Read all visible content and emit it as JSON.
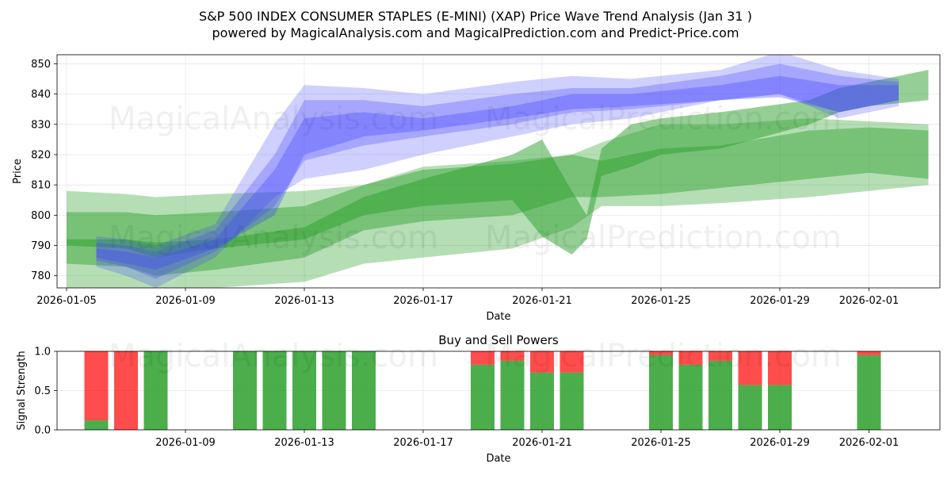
{
  "title_line1": "S&P 500 INDEX CONSUMER STAPLES (E-MINI) (XAP) Price Wave Trend Analysis (Jan 31 )",
  "title_line2": "powered by MagicalAnalysis.com and MagicalPrediction.com and Predict-Price.com",
  "watermarks": [
    "MagicalAnalysis.com",
    "MagicalPrediction.com"
  ],
  "colors": {
    "green": "#2ca02c",
    "blue": "#4444ff",
    "buy": "#2ca02c",
    "sell": "#ff0000"
  },
  "chart_data": [
    {
      "type": "area",
      "title": "",
      "xlabel": "Date",
      "ylabel": "Price",
      "xlim": [
        "2026-01-05",
        "2026-02-03"
      ],
      "ylim": [
        776,
        853
      ],
      "x_tick_labels": [
        "2026-01-05",
        "2026-01-09",
        "2026-01-13",
        "2026-01-17",
        "2026-01-21",
        "2026-01-25",
        "2026-01-29",
        "2026-02-01"
      ],
      "y_tick_labels": [
        "780",
        "790",
        "800",
        "810",
        "820",
        "830",
        "840",
        "850"
      ],
      "grid": true,
      "x_days": [
        0,
        1,
        2,
        3,
        4,
        5,
        6,
        7,
        8,
        9,
        10,
        11,
        12,
        13,
        14,
        15,
        16,
        17,
        18,
        19,
        20,
        21,
        22,
        23,
        24,
        25,
        26,
        27,
        28,
        29,
        30,
        31,
        32,
        33,
        34,
        35,
        36,
        37,
        38,
        39
      ],
      "series": [
        {
          "name": "green_band_wide",
          "color": "green",
          "alpha": 0.35,
          "x": [
            0,
            2,
            3,
            5,
            8,
            10,
            12,
            15,
            17,
            18,
            20,
            22,
            25,
            27,
            29
          ],
          "upper": [
            808,
            807,
            806,
            807,
            808,
            810,
            816,
            818,
            820,
            824,
            830,
            830,
            832,
            831,
            830
          ],
          "lower": [
            776,
            776,
            776,
            776,
            778,
            784,
            786,
            789,
            796,
            803,
            803,
            804,
            806,
            808,
            810
          ]
        },
        {
          "name": "green_band_mid",
          "color": "green",
          "alpha": 0.45,
          "x": [
            0,
            2,
            3,
            5,
            8,
            10,
            12,
            15,
            17,
            18,
            20,
            22,
            25,
            27,
            29
          ],
          "upper": [
            801,
            801,
            800,
            801,
            803,
            810,
            815,
            817,
            820,
            818,
            822,
            823,
            828,
            829,
            828
          ],
          "lower": [
            784,
            783,
            780,
            782,
            786,
            795,
            798,
            800,
            806,
            806,
            807,
            809,
            812,
            814,
            812
          ]
        },
        {
          "name": "green_wave",
          "color": "green",
          "alpha": 0.5,
          "x": [
            0,
            2,
            3,
            5,
            8,
            10,
            12,
            15,
            16,
            17,
            17.5,
            18,
            19,
            20,
            22,
            25,
            26,
            27,
            29
          ],
          "upper": [
            792,
            792,
            791,
            792,
            796,
            806,
            812,
            820,
            825,
            808,
            800,
            822,
            830,
            832,
            834,
            838,
            842,
            844,
            848
          ],
          "lower": [
            790,
            789,
            786,
            789,
            792,
            800,
            803,
            805,
            793,
            787,
            792,
            813,
            816,
            820,
            822,
            830,
            834,
            836,
            838
          ]
        },
        {
          "name": "blue_band_1",
          "color": "blue",
          "alpha": 0.25,
          "x": [
            1,
            2,
            3,
            5,
            7,
            8,
            10,
            12,
            15,
            17,
            19,
            22,
            24,
            26,
            28
          ],
          "upper": [
            793,
            792,
            790,
            797,
            830,
            843,
            842,
            840,
            844,
            846,
            845,
            848,
            854,
            848,
            845
          ],
          "lower": [
            783,
            780,
            776,
            786,
            806,
            812,
            815,
            820,
            826,
            830,
            832,
            838,
            840,
            832,
            836
          ]
        },
        {
          "name": "blue_band_2",
          "color": "blue",
          "alpha": 0.3,
          "x": [
            1,
            2,
            3,
            5,
            7,
            8,
            10,
            12,
            15,
            17,
            19,
            22,
            24,
            26,
            28
          ],
          "upper": [
            791,
            790,
            788,
            795,
            820,
            838,
            838,
            836,
            840,
            842,
            842,
            846,
            850,
            846,
            844
          ],
          "lower": [
            785,
            783,
            779,
            788,
            803,
            818,
            823,
            826,
            830,
            834,
            835,
            838,
            840,
            834,
            838
          ]
        },
        {
          "name": "blue_band_3",
          "color": "blue",
          "alpha": 0.35,
          "x": [
            1,
            2,
            3,
            5,
            7,
            8,
            10,
            12,
            15,
            17,
            19,
            22,
            24,
            26,
            28
          ],
          "upper": [
            789,
            788,
            786,
            792,
            815,
            832,
            834,
            832,
            836,
            840,
            840,
            843,
            846,
            843,
            843
          ],
          "lower": [
            786,
            784,
            782,
            789,
            800,
            820,
            826,
            828,
            832,
            835,
            836,
            838,
            839,
            834,
            838
          ]
        }
      ]
    },
    {
      "type": "bar",
      "title": "Buy and Sell Powers",
      "xlabel": "Date",
      "ylabel": "Signal Strength",
      "xlim": [
        "2026-01-05",
        "2026-02-03"
      ],
      "ylim": [
        0,
        1.0
      ],
      "x_tick_labels": [
        "2026-01-09",
        "2026-01-13",
        "2026-01-17",
        "2026-01-21",
        "2026-01-25",
        "2026-01-29",
        "2026-02-01"
      ],
      "y_tick_labels": [
        "0.0",
        "0.5",
        "1.0"
      ],
      "grid": true,
      "dates": [
        "2026-01-06",
        "2026-01-07",
        "2026-01-08",
        "2026-01-11",
        "2026-01-12",
        "2026-01-13",
        "2026-01-14",
        "2026-01-15",
        "2026-01-19",
        "2026-01-20",
        "2026-01-21",
        "2026-01-22",
        "2026-01-25",
        "2026-01-26",
        "2026-01-27",
        "2026-01-28",
        "2026-01-29",
        "2026-02-01"
      ],
      "series": [
        {
          "name": "Buy",
          "values": [
            0.12,
            0.0,
            1.0,
            1.0,
            1.0,
            1.0,
            1.0,
            1.0,
            0.83,
            0.88,
            0.73,
            0.73,
            0.95,
            0.83,
            0.88,
            0.57,
            0.57,
            0.95
          ]
        },
        {
          "name": "Sell",
          "values": [
            0.88,
            1.0,
            0.0,
            0.0,
            0.0,
            0.0,
            0.0,
            0.0,
            0.17,
            0.12,
            0.27,
            0.27,
            0.05,
            0.17,
            0.12,
            0.43,
            0.43,
            0.05
          ]
        }
      ]
    }
  ]
}
